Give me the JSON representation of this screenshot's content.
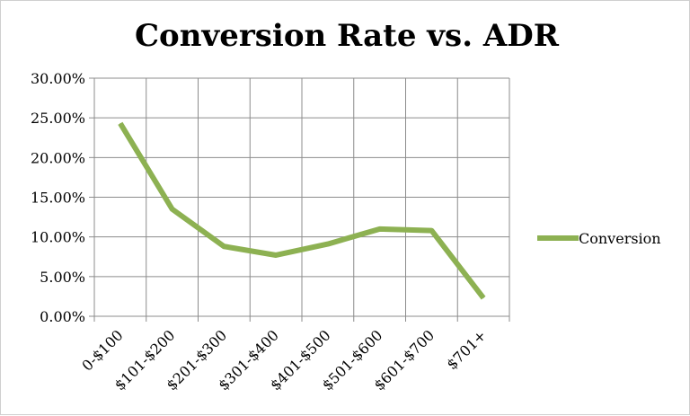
{
  "chart_data": {
    "type": "line",
    "title": "Conversion Rate vs. ADR",
    "xlabel": "",
    "ylabel": "",
    "categories": [
      "0-$100",
      "$101-$200",
      "$201-$300",
      "$301-$400",
      "$401-$500",
      "$501-$600",
      "$601-$700",
      "$701+"
    ],
    "series": [
      {
        "name": "Conversion",
        "values": [
          0.243,
          0.135,
          0.088,
          0.077,
          0.091,
          0.11,
          0.108,
          0.023
        ],
        "color": "#8db152"
      }
    ],
    "ylim": [
      0,
      0.3
    ],
    "yticks": [
      0,
      0.05,
      0.1,
      0.15,
      0.2,
      0.25,
      0.3
    ],
    "ytick_labels": [
      "0.00%",
      "5.00%",
      "10.00%",
      "15.00%",
      "20.00%",
      "25.00%",
      "30.00%"
    ],
    "grid": true,
    "legend_position": "right",
    "colors": {
      "gridline": "#8c8c8c",
      "axis": "#8c8c8c"
    }
  }
}
